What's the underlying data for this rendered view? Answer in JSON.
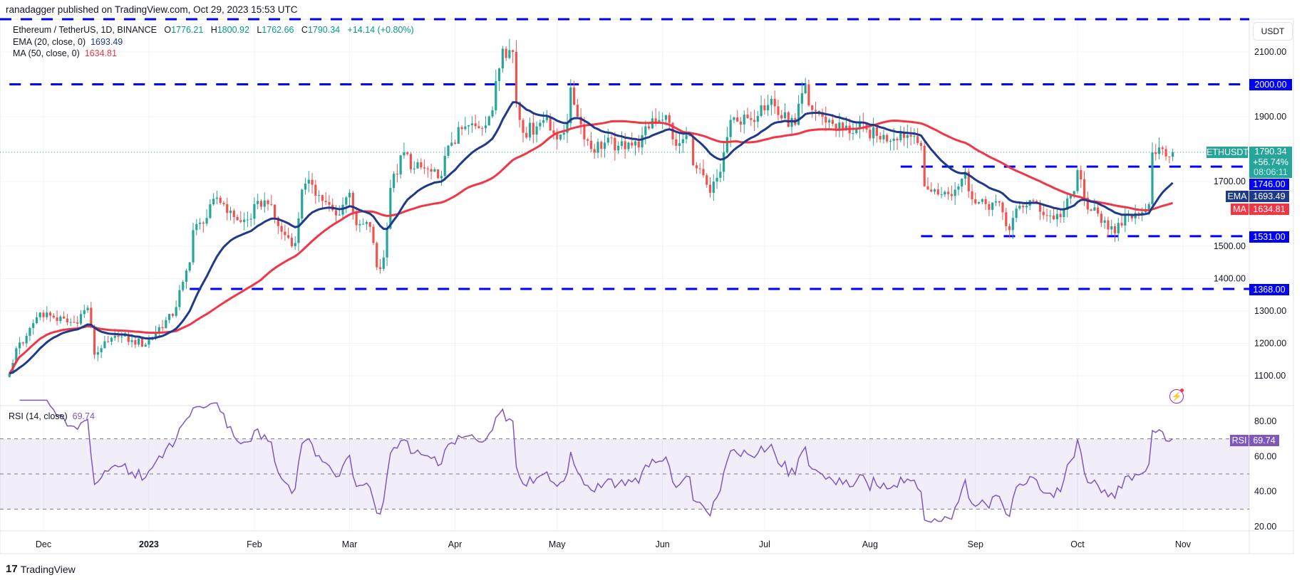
{
  "header": {
    "published": "ranadagger published on TradingView.com, Oct 29, 2023 15:53 UTC"
  },
  "legend": {
    "symbol": "Ethereum / TetherUS, 1D, BINANCE",
    "o_label": "O",
    "o": "1776.21",
    "h_label": "H",
    "h": "1800.92",
    "l_label": "L",
    "l": "1762.66",
    "c_label": "C",
    "c": "1790.34",
    "change": "+14.14 (+0.80%)",
    "ema_label": "EMA (20, close, 0)",
    "ema_value": "1693.49",
    "ma_label": "MA (50, close, 0)",
    "ma_value": "1634.81",
    "rsi_label": "RSI (14, close)",
    "rsi_value": "69.74"
  },
  "right_axis": {
    "currency": "USDT",
    "symbol_tag": "ETHUSDT",
    "last_price": "1790.34",
    "last_change_pct": "+56.74%",
    "countdown": "08:06:11",
    "level_1746": "1746.00",
    "ema_tag": "EMA",
    "ema_value": "1693.49",
    "ma_tag": "MA",
    "ma_value": "1634.81",
    "level_1531": "1531.00",
    "level_1368": "1368.00",
    "level_2000": "2000.00",
    "rsi_tag": "RSI",
    "rsi_value": "69.74"
  },
  "footer": {
    "brand": "TradingView"
  },
  "colors": {
    "up": "#26a69a",
    "down": "#ef5350",
    "ema": "#1e3a8a",
    "ma": "#f23645",
    "levels": "#0000ff",
    "rsi": "#7e57c2"
  },
  "chart_data": {
    "type": "candlestick",
    "symbol": "ETHUSDT",
    "interval": "1D",
    "price_range": [
      1050,
      2180
    ],
    "price_ticks": [
      "2100.00",
      "1900.00",
      "1700.00",
      "1500.00",
      "1400.00",
      "1300.00",
      "1200.00",
      "1100.00"
    ],
    "rsi_ticks": [
      "80.00",
      "60.00",
      "40.00",
      "20.00"
    ],
    "rsi_range": [
      12,
      92
    ],
    "rsi_bands": [
      30,
      50,
      70
    ],
    "time_ticks": [
      {
        "label": "Dec",
        "date": "2022-12-01"
      },
      {
        "label": "2023",
        "date": "2023-01-01"
      },
      {
        "label": "Feb",
        "date": "2023-02-01"
      },
      {
        "label": "Mar",
        "date": "2023-03-01"
      },
      {
        "label": "Apr",
        "date": "2023-04-01"
      },
      {
        "label": "May",
        "date": "2023-05-01"
      },
      {
        "label": "Jun",
        "date": "2023-06-01"
      },
      {
        "label": "Jul",
        "date": "2023-07-01"
      },
      {
        "label": "Aug",
        "date": "2023-08-01"
      },
      {
        "label": "Sep",
        "date": "2023-09-01"
      },
      {
        "label": "Oct",
        "date": "2023-10-01"
      },
      {
        "label": "Nov",
        "date": "2023-11-01"
      }
    ],
    "levels": [
      {
        "price": 2000,
        "from": "2022-11-21"
      },
      {
        "price": 1746,
        "from": "2023-08-10"
      },
      {
        "price": 1531,
        "from": "2023-08-16"
      },
      {
        "price": 1368,
        "from": "2023-01-13"
      }
    ],
    "last_candle": {
      "date": "2023-10-29",
      "open": 1776.21,
      "high": 1800.92,
      "low": 1762.66,
      "close": 1790.34
    },
    "ema_period": 20,
    "ma_period": 50,
    "rsi_period": 14,
    "closes": [
      [
        "2022-11-21",
        1107
      ],
      [
        "2022-11-23",
        1185
      ],
      [
        "2022-11-25",
        1200
      ],
      [
        "2022-11-30",
        1295
      ],
      [
        "2022-12-04",
        1280
      ],
      [
        "2022-12-08",
        1265
      ],
      [
        "2022-12-10",
        1265
      ],
      [
        "2022-12-14",
        1310
      ],
      [
        "2022-12-16",
        1165
      ],
      [
        "2022-12-18",
        1185
      ],
      [
        "2022-12-23",
        1220
      ],
      [
        "2022-12-27",
        1210
      ],
      [
        "2022-12-31",
        1196
      ],
      [
        "2023-01-04",
        1250
      ],
      [
        "2023-01-08",
        1285
      ],
      [
        "2023-01-11",
        1390
      ],
      [
        "2023-01-13",
        1450
      ],
      [
        "2023-01-14",
        1550
      ],
      [
        "2023-01-17",
        1570
      ],
      [
        "2023-01-21",
        1650
      ],
      [
        "2023-01-23",
        1630
      ],
      [
        "2023-01-25",
        1610
      ],
      [
        "2023-01-28",
        1575
      ],
      [
        "2023-01-31",
        1585
      ],
      [
        "2023-02-02",
        1640
      ],
      [
        "2023-02-05",
        1630
      ],
      [
        "2023-02-09",
        1545
      ],
      [
        "2023-02-13",
        1510
      ],
      [
        "2023-02-15",
        1675
      ],
      [
        "2023-02-18",
        1690
      ],
      [
        "2023-02-21",
        1640
      ],
      [
        "2023-02-25",
        1595
      ],
      [
        "2023-03-01",
        1665
      ],
      [
        "2023-03-03",
        1565
      ],
      [
        "2023-03-07",
        1560
      ],
      [
        "2023-03-09",
        1435
      ],
      [
        "2023-03-10",
        1430
      ],
      [
        "2023-03-11",
        1465
      ],
      [
        "2023-03-13",
        1680
      ],
      [
        "2023-03-17",
        1790
      ],
      [
        "2023-03-20",
        1740
      ],
      [
        "2023-03-23",
        1740
      ],
      [
        "2023-03-27",
        1710
      ],
      [
        "2023-03-31",
        1820
      ],
      [
        "2023-04-04",
        1870
      ],
      [
        "2023-04-08",
        1865
      ],
      [
        "2023-04-12",
        1920
      ],
      [
        "2023-04-13",
        2010
      ],
      [
        "2023-04-15",
        2110
      ],
      [
        "2023-04-18",
        2100
      ],
      [
        "2023-04-19",
        1945
      ],
      [
        "2023-04-21",
        1850
      ],
      [
        "2023-04-25",
        1870
      ],
      [
        "2023-04-28",
        1900
      ],
      [
        "2023-05-01",
        1830
      ],
      [
        "2023-05-04",
        1880
      ],
      [
        "2023-05-05",
        1990
      ],
      [
        "2023-05-07",
        1900
      ],
      [
        "2023-05-11",
        1800
      ],
      [
        "2023-05-15",
        1820
      ],
      [
        "2023-05-19",
        1810
      ],
      [
        "2023-05-22",
        1820
      ],
      [
        "2023-05-25",
        1805
      ],
      [
        "2023-05-29",
        1895
      ],
      [
        "2023-06-02",
        1905
      ],
      [
        "2023-06-05",
        1810
      ],
      [
        "2023-06-09",
        1840
      ],
      [
        "2023-06-10",
        1750
      ],
      [
        "2023-06-14",
        1690
      ],
      [
        "2023-06-15",
        1665
      ],
      [
        "2023-06-18",
        1730
      ],
      [
        "2023-06-21",
        1890
      ],
      [
        "2023-06-23",
        1885
      ],
      [
        "2023-06-27",
        1890
      ],
      [
        "2023-06-30",
        1935
      ],
      [
        "2023-07-03",
        1955
      ],
      [
        "2023-07-05",
        1905
      ],
      [
        "2023-07-10",
        1875
      ],
      [
        "2023-07-13",
        2000
      ],
      [
        "2023-07-14",
        1935
      ],
      [
        "2023-07-18",
        1900
      ],
      [
        "2023-07-20",
        1890
      ],
      [
        "2023-07-24",
        1860
      ],
      [
        "2023-07-31",
        1860
      ],
      [
        "2023-08-04",
        1830
      ],
      [
        "2023-08-10",
        1850
      ],
      [
        "2023-08-14",
        1840
      ],
      [
        "2023-08-16",
        1810
      ],
      [
        "2023-08-17",
        1685
      ],
      [
        "2023-08-18",
        1675
      ],
      [
        "2023-08-22",
        1660
      ],
      [
        "2023-08-25",
        1655
      ],
      [
        "2023-08-29",
        1730
      ],
      [
        "2023-08-31",
        1645
      ],
      [
        "2023-09-04",
        1630
      ],
      [
        "2023-09-08",
        1635
      ],
      [
        "2023-09-11",
        1550
      ],
      [
        "2023-09-14",
        1625
      ],
      [
        "2023-09-18",
        1640
      ],
      [
        "2023-09-22",
        1595
      ],
      [
        "2023-09-26",
        1590
      ],
      [
        "2023-09-30",
        1670
      ],
      [
        "2023-10-01",
        1735
      ],
      [
        "2023-10-03",
        1650
      ],
      [
        "2023-10-05",
        1610
      ],
      [
        "2023-10-09",
        1580
      ],
      [
        "2023-10-12",
        1540
      ],
      [
        "2023-10-16",
        1600
      ],
      [
        "2023-10-20",
        1605
      ],
      [
        "2023-10-22",
        1630
      ],
      [
        "2023-10-23",
        1790
      ],
      [
        "2023-10-24",
        1785
      ],
      [
        "2023-10-26",
        1800
      ],
      [
        "2023-10-28",
        1776.21
      ],
      [
        "2023-10-29",
        1790.34
      ]
    ]
  }
}
